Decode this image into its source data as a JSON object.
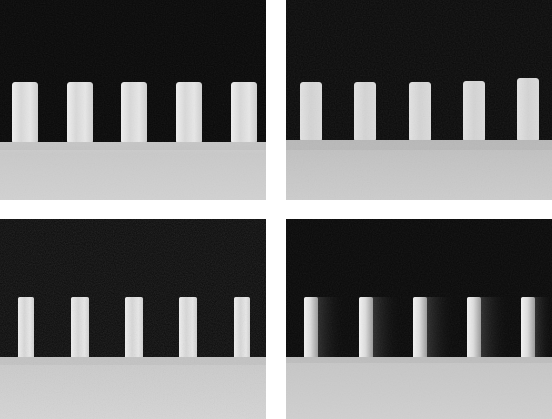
{
  "figure": {
    "panels": [
      {
        "id": "tl",
        "description_name": "sem-panel-top-left"
      },
      {
        "id": "tr",
        "description_name": "sem-panel-top-right"
      },
      {
        "id": "bl",
        "description_name": "sem-panel-bottom-left"
      },
      {
        "id": "br",
        "description_name": "sem-panel-bottom-right"
      }
    ],
    "line_count_per_panel": 5,
    "colors": {
      "background": "#060606",
      "substrate_light": "#d4d4d4",
      "substrate_mid": "#c2c2c2",
      "line_light": "#e2e2e2",
      "line_mid": "#c9c9c9"
    }
  }
}
